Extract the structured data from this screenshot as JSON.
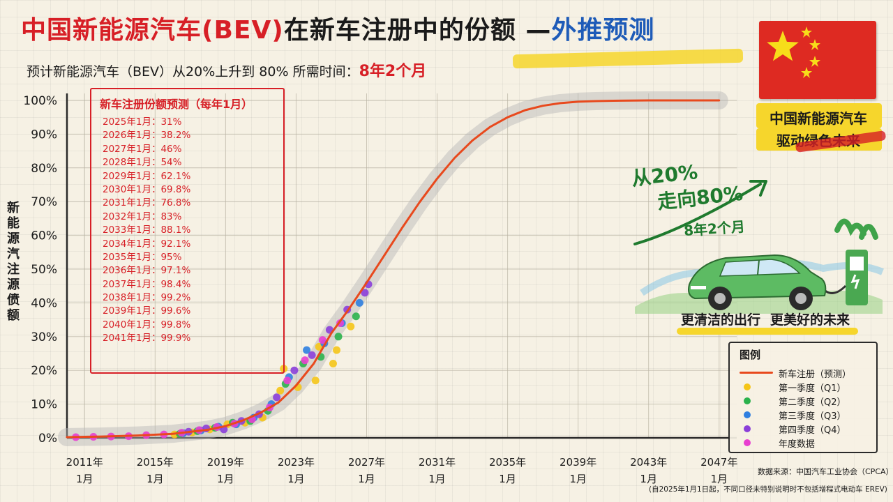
{
  "title": {
    "main": "中国新能源汽车(BEV)",
    "mid": "在新车注册中的份额 —",
    "highlight": "外推预测"
  },
  "subtitle": {
    "prefix": "预计新能源汽车（BEV）从20%上升到 80% 所需时间：",
    "highlight": "8年2个月"
  },
  "slogan": {
    "line1": "中国新能源汽车",
    "line2": "驱动绿色未来"
  },
  "annotation": {
    "line1": "从20%",
    "line2": "走向80%",
    "line3": "8年2个月"
  },
  "tagline": {
    "left": "更清洁的出行",
    "right": "更美好的未来"
  },
  "forecast_box": {
    "title": "新车注册份额预测（每年1月）",
    "items": [
      "2025年1月：31%",
      "2026年1月：38.2%",
      "2027年1月：46%",
      "2028年1月：54%",
      "2029年1月：62.1%",
      "2030年1月：69.8%",
      "2031年1月：76.8%",
      "2032年1月：83%",
      "2033年1月：88.1%",
      "2034年1月：92.1%",
      "2035年1月：95%",
      "2036年1月：97.1%",
      "2037年1月：98.4%",
      "2038年1月：99.2%",
      "2039年1月：99.6%",
      "2040年1月：99.8%",
      "2041年1月：99.9%"
    ]
  },
  "legend": {
    "title": "图例",
    "items": [
      {
        "label": "新车注册（预测）",
        "color": "#e8491d",
        "kind": "line"
      },
      {
        "label": "第一季度（Q1）",
        "color": "#f5c518",
        "kind": "dot"
      },
      {
        "label": "第二季度（Q2）",
        "color": "#2bb24c",
        "kind": "dot"
      },
      {
        "label": "第三季度（Q3）",
        "color": "#2f7fe0",
        "kind": "dot"
      },
      {
        "label": "第四季度（Q4）",
        "color": "#8b3fd9",
        "kind": "dot"
      },
      {
        "label": "年度数据",
        "color": "#e83fd0",
        "kind": "dot"
      }
    ]
  },
  "source": "数据来源：中国汽车工业协会（CPCA）",
  "note": "(自2025年1月1日起，不同口径未特别说明时不包括增程式电动车 EREV)",
  "colors": {
    "accent_red": "#d71f26",
    "accent_blue": "#1e5bb8",
    "highlight_yellow": "#f6d62c",
    "curve": "#e8491d"
  },
  "chart_data": {
    "type": "line",
    "xlabel": "",
    "ylabel": "新能源汽注源偾额",
    "xlim": [
      2010,
      2048
    ],
    "ylim": [
      0,
      100
    ],
    "grid": true,
    "x_ticks": [
      {
        "x": 2011,
        "l1": "2011年",
        "l2": "1月"
      },
      {
        "x": 2015,
        "l1": "2015年",
        "l2": "1月"
      },
      {
        "x": 2019,
        "l1": "2019年",
        "l2": "1月"
      },
      {
        "x": 2023,
        "l1": "2023年",
        "l2": "1月"
      },
      {
        "x": 2027,
        "l1": "2027年",
        "l2": "1月"
      },
      {
        "x": 2031,
        "l1": "2031年",
        "l2": "1月"
      },
      {
        "x": 2035,
        "l1": "2035年",
        "l2": "1月"
      },
      {
        "x": 2039,
        "l1": "2039年",
        "l2": "1月"
      },
      {
        "x": 2043,
        "l1": "2043年",
        "l2": "1月"
      },
      {
        "x": 2047,
        "l1": "2047年",
        "l2": "1月"
      }
    ],
    "y_ticks": [
      {
        "y": 0,
        "label": "0%"
      },
      {
        "y": 10,
        "label": "10%"
      },
      {
        "y": 20,
        "label": "20%"
      },
      {
        "y": 30,
        "label": "30%"
      },
      {
        "y": 40,
        "label": "40%"
      },
      {
        "y": 50,
        "label": "50%"
      },
      {
        "y": 60,
        "label": "60%"
      },
      {
        "y": 70,
        "label": "70%"
      },
      {
        "y": 80,
        "label": "80%"
      },
      {
        "y": 90,
        "label": "90%"
      },
      {
        "y": 100,
        "label": "100%"
      }
    ],
    "series": [
      {
        "name": "新车注册（预测）",
        "kind": "line",
        "color": "#e8491d",
        "points": [
          [
            2010,
            0.2
          ],
          [
            2012,
            0.4
          ],
          [
            2014,
            0.7
          ],
          [
            2016,
            1.2
          ],
          [
            2018,
            2.4
          ],
          [
            2019,
            3.5
          ],
          [
            2020,
            5.2
          ],
          [
            2021,
            7.5
          ],
          [
            2022,
            10.5
          ],
          [
            2023,
            15.5
          ],
          [
            2024,
            22
          ],
          [
            2025,
            31
          ],
          [
            2026,
            38.2
          ],
          [
            2027,
            46
          ],
          [
            2028,
            54
          ],
          [
            2029,
            62.1
          ],
          [
            2030,
            69.8
          ],
          [
            2031,
            76.8
          ],
          [
            2032,
            83
          ],
          [
            2033,
            88.1
          ],
          [
            2034,
            92.1
          ],
          [
            2035,
            95
          ],
          [
            2036,
            97.1
          ],
          [
            2037,
            98.4
          ],
          [
            2038,
            99.2
          ],
          [
            2039,
            99.6
          ],
          [
            2040,
            99.8
          ],
          [
            2041,
            99.9
          ],
          [
            2043,
            100
          ],
          [
            2047,
            100
          ]
        ]
      },
      {
        "name": "第一季度（Q1）",
        "kind": "scatter",
        "color": "#f5c518",
        "points": [
          [
            2016.1,
            1.0
          ],
          [
            2017.1,
            1.6
          ],
          [
            2018.1,
            2.5
          ],
          [
            2019.1,
            4.0
          ],
          [
            2020.1,
            4.5
          ],
          [
            2021.1,
            6.0
          ],
          [
            2022.1,
            14.0
          ],
          [
            2022.3,
            20.5
          ],
          [
            2023.1,
            15.0
          ],
          [
            2024.1,
            17.0
          ],
          [
            2024.3,
            27.0
          ],
          [
            2025.1,
            22.0
          ],
          [
            2025.3,
            26.0
          ],
          [
            2026.1,
            33.0
          ]
        ]
      },
      {
        "name": "第二季度（Q2）",
        "kind": "scatter",
        "color": "#2bb24c",
        "points": [
          [
            2016.4,
            1.2
          ],
          [
            2017.4,
            2.0
          ],
          [
            2018.4,
            3.0
          ],
          [
            2019.4,
            4.5
          ],
          [
            2020.4,
            5.0
          ],
          [
            2021.4,
            8.0
          ],
          [
            2022.4,
            16.0
          ],
          [
            2023.4,
            22.0
          ],
          [
            2024.4,
            24.0
          ],
          [
            2025.4,
            30.0
          ],
          [
            2026.4,
            36.0
          ]
        ]
      },
      {
        "name": "第三季度（Q3）",
        "kind": "scatter",
        "color": "#2f7fe0",
        "points": [
          [
            2016.6,
            1.4
          ],
          [
            2017.6,
            2.2
          ],
          [
            2018.6,
            3.3
          ],
          [
            2019.6,
            4.0
          ],
          [
            2020.6,
            6.0
          ],
          [
            2021.6,
            10.0
          ],
          [
            2022.6,
            18.0
          ],
          [
            2023.6,
            26.0
          ],
          [
            2024.6,
            28.0
          ],
          [
            2025.6,
            34.0
          ],
          [
            2026.6,
            40.0
          ]
        ]
      },
      {
        "name": "第四季度（Q4）",
        "kind": "scatter",
        "color": "#8b3fd9",
        "points": [
          [
            2016.9,
            1.8
          ],
          [
            2017.9,
            2.8
          ],
          [
            2018.9,
            2.5
          ],
          [
            2019.9,
            5.0
          ],
          [
            2020.9,
            7.0
          ],
          [
            2021.9,
            12.0
          ],
          [
            2022.9,
            20.0
          ],
          [
            2023.9,
            24.5
          ],
          [
            2024.9,
            32.0
          ],
          [
            2025.9,
            38.0
          ],
          [
            2026.9,
            43.0
          ],
          [
            2027.1,
            45.5
          ]
        ]
      },
      {
        "name": "年度数据",
        "kind": "scatter",
        "color": "#e83fd0",
        "points": [
          [
            2010.5,
            0.2
          ],
          [
            2011.5,
            0.3
          ],
          [
            2012.5,
            0.4
          ],
          [
            2013.5,
            0.5
          ],
          [
            2014.5,
            0.8
          ],
          [
            2015.5,
            1.0
          ],
          [
            2016.5,
            1.5
          ],
          [
            2017.5,
            2.3
          ],
          [
            2018.5,
            3.2
          ],
          [
            2019.5,
            4.2
          ],
          [
            2020.5,
            5.5
          ],
          [
            2021.5,
            9.0
          ],
          [
            2022.5,
            17.0
          ],
          [
            2023.5,
            23.0
          ],
          [
            2024.5,
            29.0
          ],
          [
            2025.5,
            34.0
          ]
        ]
      }
    ]
  }
}
